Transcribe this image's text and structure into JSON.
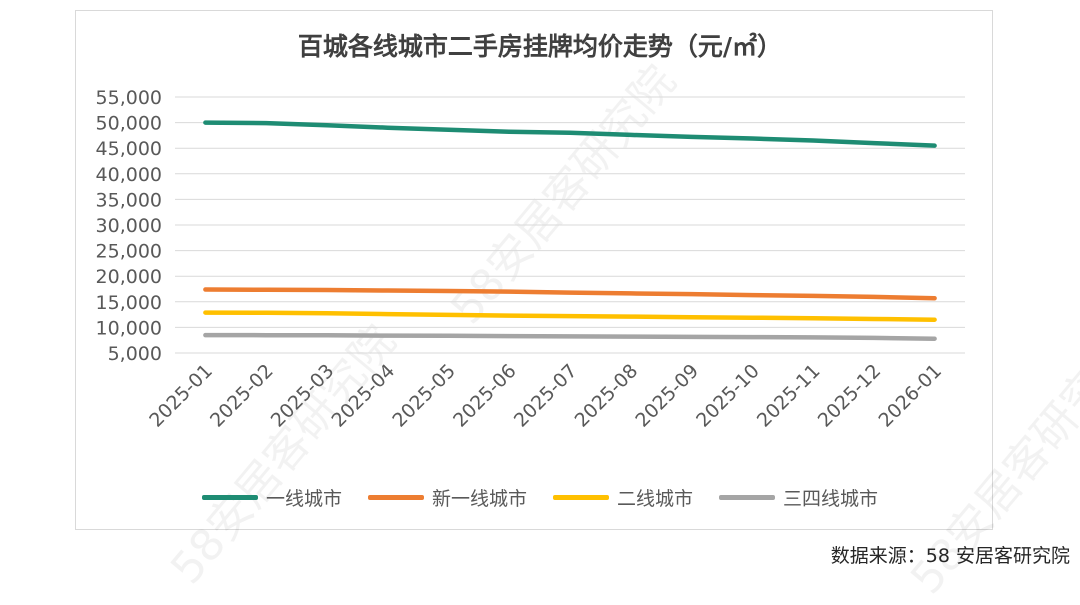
{
  "chart_data": {
    "type": "line",
    "title": "百城各线城市二手房挂牌均价走势（元/㎡）",
    "x": [
      "2025-01",
      "2025-02",
      "2025-03",
      "2025-04",
      "2025-05",
      "2025-06",
      "2025-07",
      "2025-08",
      "2025-09",
      "2025-10",
      "2025-11",
      "2025-12",
      "2026-01"
    ],
    "yticks": [
      "5,000",
      "10,000",
      "15,000",
      "20,000",
      "25,000",
      "30,000",
      "35,000",
      "40,000",
      "45,000",
      "50,000",
      "55,000"
    ],
    "ylim": [
      5000,
      55000
    ],
    "grid": true,
    "legend_position": "bottom",
    "series": [
      {
        "name": "一线城市",
        "color": "#1e8c73",
        "values": [
          50000,
          49900,
          49500,
          49000,
          48600,
          48200,
          48000,
          47600,
          47200,
          46900,
          46500,
          46000,
          45500
        ]
      },
      {
        "name": "新一线城市",
        "color": "#ed7d31",
        "values": [
          17400,
          17350,
          17300,
          17200,
          17100,
          17000,
          16800,
          16650,
          16500,
          16300,
          16150,
          15950,
          15700
        ]
      },
      {
        "name": "二线城市",
        "color": "#ffc000",
        "values": [
          12900,
          12850,
          12750,
          12600,
          12450,
          12300,
          12200,
          12100,
          12000,
          11900,
          11800,
          11650,
          11500
        ]
      },
      {
        "name": "三四线城市",
        "color": "#a5a5a5",
        "values": [
          8500,
          8480,
          8450,
          8400,
          8350,
          8300,
          8250,
          8200,
          8150,
          8100,
          8050,
          7950,
          7800
        ]
      }
    ]
  },
  "watermark_text": "58安居客研究院",
  "source": "数据来源：58 安居客研究院"
}
